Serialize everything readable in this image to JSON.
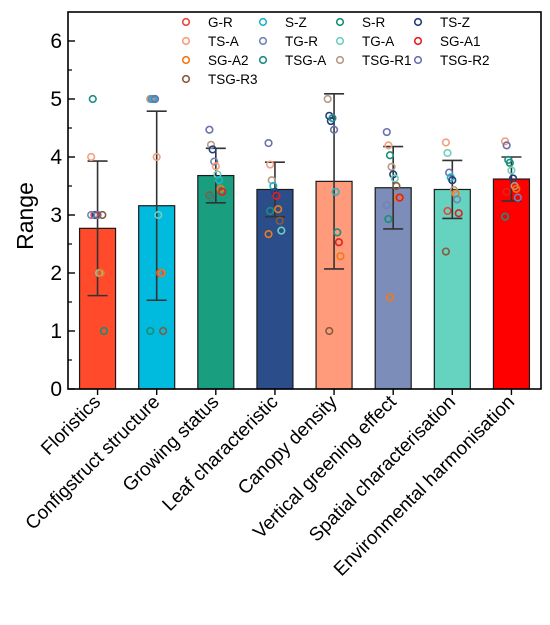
{
  "chart_data": {
    "type": "bar",
    "title": "",
    "xlabel": "",
    "ylabel": "Range",
    "ylim": [
      0,
      6.5
    ],
    "yticks": [
      0,
      1,
      2,
      3,
      4,
      5,
      6
    ],
    "categories": [
      "Floristics",
      "Configstruct structure",
      "Growing status",
      "Leaf characteristic",
      "Canopy density",
      "Vertical greening effect",
      "Spatial characterisation",
      "Environmental harmonisation"
    ],
    "bar_colors": [
      "#FF4A2B",
      "#00BBDD",
      "#1A9E80",
      "#2B4E8A",
      "#FF9A7A",
      "#7B8DB8",
      "#66D3C0",
      "#FF0000"
    ],
    "values": [
      2.77,
      3.16,
      3.68,
      3.44,
      3.58,
      3.47,
      3.44,
      3.62
    ],
    "error_sd": [
      1.16,
      1.63,
      0.47,
      0.47,
      1.51,
      0.71,
      0.5,
      0.38
    ],
    "legend": {
      "placement": "top-right",
      "entries": [
        {
          "label": "G-R",
          "color": "#E8463A"
        },
        {
          "label": "S-Z",
          "color": "#1CB7C9"
        },
        {
          "label": "S-R",
          "color": "#168F74"
        },
        {
          "label": "TS-Z",
          "color": "#233E7A"
        },
        {
          "label": "TS-A",
          "color": "#F4A07E"
        },
        {
          "label": "TG-R",
          "color": "#6F85B5"
        },
        {
          "label": "TG-A",
          "color": "#6FCFBE"
        },
        {
          "label": "SG-A1",
          "color": "#E02020"
        },
        {
          "label": "SG-A2",
          "color": "#F07A1A"
        },
        {
          "label": "TSG-A",
          "color": "#1B8E84"
        },
        {
          "label": "TSG-R1",
          "color": "#B59A86"
        },
        {
          "label": "TSG-R2",
          "color": "#6A70B0"
        },
        {
          "label": "TSG-R3",
          "color": "#8A5A3C"
        }
      ]
    },
    "points": [
      [
        [
          "TS-A",
          4
        ],
        [
          "TSG-A",
          5
        ],
        [
          "G-R",
          3
        ],
        [
          "TS-Z",
          3
        ],
        [
          "TSG-R2",
          3
        ],
        [
          "TG-A",
          2
        ],
        [
          "SG-A2",
          2
        ],
        [
          "TSG-R3",
          3
        ],
        [
          "S-R",
          1
        ],
        [
          "TG-R",
          3
        ]
      ],
      [
        [
          "TSG-R1",
          5
        ],
        [
          "TG-R",
          5
        ],
        [
          "S-Z",
          5
        ],
        [
          "TSG-R2",
          5
        ],
        [
          "TS-A",
          4
        ],
        [
          "TG-A",
          3
        ],
        [
          "G-R",
          2
        ],
        [
          "SG-A2",
          2
        ],
        [
          "TSG-R3",
          1
        ],
        [
          "S-R",
          1
        ]
      ],
      [
        [
          "TSG-R2",
          4.47
        ],
        [
          "TSG-R1",
          4.21
        ],
        [
          "TS-Z",
          4.13
        ],
        [
          "TG-R",
          3.92
        ],
        [
          "TS-A",
          3.84
        ],
        [
          "TG-A",
          3.7
        ],
        [
          "S-Z",
          3.6
        ],
        [
          "SG-A2",
          3.45
        ],
        [
          "SG-A1",
          3.4
        ],
        [
          "TSG-R3",
          3.34
        ],
        [
          "TSG-A",
          3.3
        ]
      ],
      [
        [
          "TSG-R2",
          4.24
        ],
        [
          "TS-A",
          3.87
        ],
        [
          "TSG-R1",
          3.6
        ],
        [
          "S-Z",
          3.5
        ],
        [
          "TS-Z",
          3.4
        ],
        [
          "SG-A1",
          3.33
        ],
        [
          "SG-A2",
          3.1
        ],
        [
          "TSG-R3",
          2.9
        ],
        [
          "TG-A",
          2.73
        ],
        [
          "SG-A2",
          2.67
        ],
        [
          "TSG-A",
          3.07
        ]
      ],
      [
        [
          "TSG-R1",
          5
        ],
        [
          "TS-Z",
          4.71
        ],
        [
          "TS-Z",
          4.62
        ],
        [
          "TSG-A",
          4.67
        ],
        [
          "TSG-R2",
          4.47
        ],
        [
          "S-Z",
          3.4
        ],
        [
          "TSG-A",
          2.7
        ],
        [
          "SG-A1",
          2.53
        ],
        [
          "SG-A2",
          2.29
        ],
        [
          "TS-A",
          1
        ],
        [
          "TSG-R3",
          1
        ]
      ],
      [
        [
          "TSG-R2",
          4.43
        ],
        [
          "TS-A",
          4.2
        ],
        [
          "S-R",
          4.03
        ],
        [
          "TSG-R1",
          3.83
        ],
        [
          "TS-Z",
          3.7
        ],
        [
          "TG-A",
          3.63
        ],
        [
          "TSG-R3",
          3.5
        ],
        [
          "SG-A2",
          3.3
        ],
        [
          "SG-A1",
          3.3
        ],
        [
          "TG-R",
          3.17
        ],
        [
          "S-R",
          2.93
        ],
        [
          "SG-A2",
          1.58
        ]
      ],
      [
        [
          "TS-A",
          4.25
        ],
        [
          "TG-A",
          4.07
        ],
        [
          "TSG-R2",
          3.73
        ],
        [
          "S-Z",
          3.65
        ],
        [
          "TS-Z",
          3.6
        ],
        [
          "TSG-R1",
          3.43
        ],
        [
          "SG-A2",
          3.37
        ],
        [
          "TG-R",
          3.27
        ],
        [
          "SG-A1",
          3.03
        ],
        [
          "TSG-R3",
          2.37
        ],
        [
          "G-R",
          3.07
        ]
      ],
      [
        [
          "TS-A",
          4.27
        ],
        [
          "TSG-R2",
          4.2
        ],
        [
          "TSG-A",
          3.95
        ],
        [
          "S-R",
          3.9
        ],
        [
          "TG-A",
          3.77
        ],
        [
          "TS-Z",
          3.63
        ],
        [
          "TSG-R1",
          3.5
        ],
        [
          "SG-A2",
          3.45
        ],
        [
          "TG-R",
          3.3
        ],
        [
          "TSG-A",
          2.97
        ],
        [
          "SG-A1",
          3.4
        ]
      ]
    ]
  }
}
